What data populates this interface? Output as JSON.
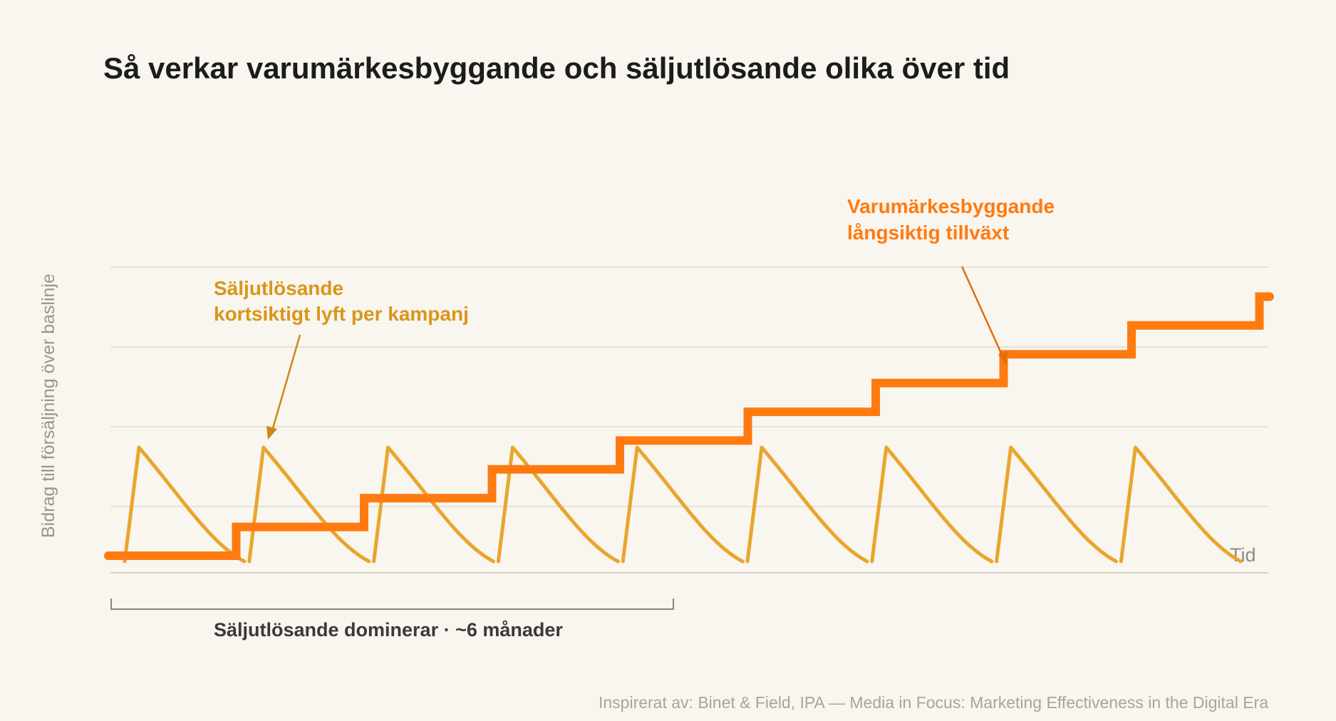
{
  "chart_data": {
    "type": "line",
    "title": "Så verkar varumärkesbyggande och säljutlösande olika över tid",
    "ylabel": "Bidrag till försäljning över baslinje",
    "xlabel": "Tid",
    "grid": true,
    "series": [
      {
        "name": "Varumärkesbyggande",
        "color": "#ff7a10",
        "shape": "step",
        "x": [
          0,
          1,
          2,
          3,
          4,
          5,
          6,
          7,
          8,
          9
        ],
        "values": [
          0.2,
          0.6,
          1.0,
          1.4,
          1.8,
          2.2,
          2.6,
          3.0,
          3.4,
          3.8
        ]
      },
      {
        "name": "Säljutlösande",
        "color": "#e8a62c",
        "shape": "sawtooth",
        "pulses": 9,
        "peak": 1.6,
        "baseline": 0.0
      }
    ],
    "annotations": [
      {
        "series": "Säljutlösande",
        "lines": [
          "Säljutlösande",
          "kortsiktigt lyft per kampanj"
        ]
      },
      {
        "series": "Varumärkesbyggande",
        "lines": [
          "Varumärkesbyggande",
          "långsiktig tillväxt"
        ]
      }
    ],
    "bracket": {
      "label": "Säljutlösande dominerar · ~6 månader"
    },
    "source": "Inspirerat av: Binet & Field, IPA — Media in Focus: Marketing Effectiveness in the Digital Era"
  }
}
